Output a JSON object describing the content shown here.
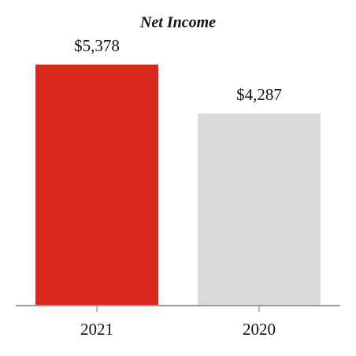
{
  "chart_data": {
    "type": "bar",
    "title": "Net Income",
    "categories": [
      "2021",
      "2020"
    ],
    "values": [
      5378,
      4287
    ],
    "value_labels": [
      "$5,378",
      "$4,287"
    ],
    "colors": [
      "#d9291c",
      "#d9dadb"
    ]
  }
}
